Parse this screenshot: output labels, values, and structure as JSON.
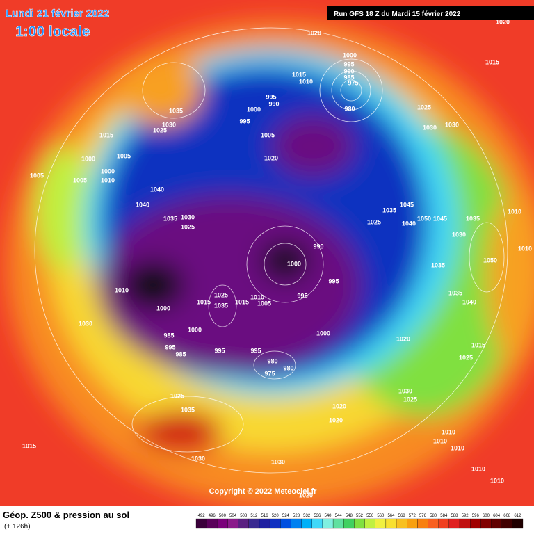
{
  "header": {
    "date": "Lundi 21 février 2022",
    "time": "1:00 locale",
    "run": "Run GFS 18 Z du Mardi 15 février 2022"
  },
  "footer": {
    "title": "Géop. Z500 & pression au sol",
    "subtitle": "(+ 126h)",
    "copyright": "Copyright © 2022 Meteociel.fr"
  },
  "colorbar": {
    "labels": [
      492,
      496,
      500,
      504,
      508,
      512,
      516,
      520,
      524,
      528,
      532,
      536,
      540,
      544,
      548,
      552,
      556,
      560,
      564,
      568,
      572,
      576,
      580,
      584,
      588,
      592,
      596,
      600,
      604,
      608,
      612
    ],
    "colors": [
      "#3a003a",
      "#5a005a",
      "#7a007a",
      "#8a1a8a",
      "#5a2080",
      "#3a2a90",
      "#2020a0",
      "#1030c0",
      "#0050e0",
      "#0080f0",
      "#00b0f8",
      "#40d8f8",
      "#80f0e0",
      "#60e0a0",
      "#40d060",
      "#80e040",
      "#c0f040",
      "#f0f040",
      "#f8e030",
      "#f8c020",
      "#f8a010",
      "#f88010",
      "#f86020",
      "#f04020",
      "#e02020",
      "#c01010",
      "#a00000",
      "#800000",
      "#600000",
      "#400000",
      "#200000"
    ]
  },
  "isobar_labels": [
    1020,
    1000,
    995,
    990,
    985,
    975,
    980,
    1015,
    1010,
    995,
    990,
    1000,
    995,
    1035,
    1030,
    1025,
    1015,
    1005,
    1000,
    1005,
    1005,
    1000,
    1010,
    1005,
    1020,
    1025,
    1030,
    1030,
    1015,
    1020,
    1040,
    1040,
    1035,
    1030,
    1025,
    1035,
    1045,
    1025,
    1040,
    1050,
    1045,
    1035,
    1030,
    1010,
    1010,
    1050,
    1035,
    1010,
    1000,
    1015,
    1025,
    1035,
    1015,
    1010,
    1005,
    1000,
    990,
    995,
    995,
    1000,
    1030,
    1000,
    985,
    995,
    985,
    995,
    995,
    980,
    980,
    975,
    1020,
    1015,
    1025,
    1040,
    1035,
    1030,
    1025,
    1020,
    1020,
    1025,
    1035,
    1015,
    1030,
    1030,
    1010,
    1010,
    1010,
    1010,
    1010,
    1020
  ]
}
